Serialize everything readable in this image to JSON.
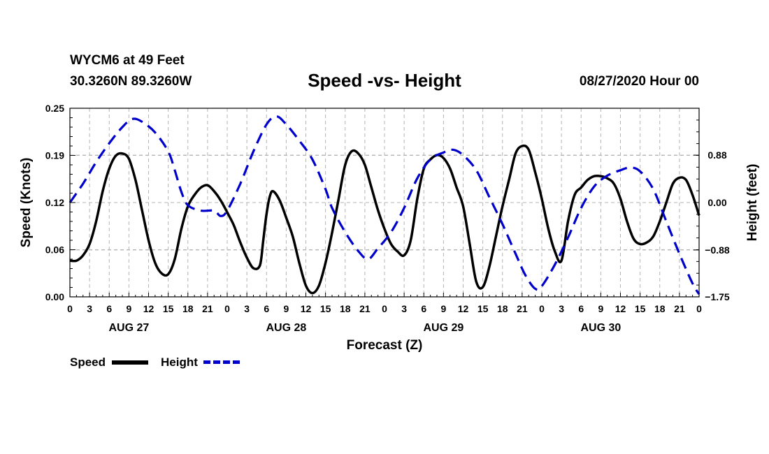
{
  "header": {
    "station": "WYCM6 at 49 Feet",
    "coords": "30.3260N 89.3260W",
    "title": "Speed -vs- Height",
    "date": "08/27/2020 Hour 00"
  },
  "legend": {
    "speed_label": "Speed",
    "height_label": "Height"
  },
  "colors": {
    "speed": "#000000",
    "height": "#0000cc",
    "grid": "#b4b4b4"
  },
  "chart_data": {
    "type": "line",
    "title": "Speed -vs- Height",
    "xlabel": "Forecast (Z)",
    "ylabel": "Speed (Knots)",
    "y2label": "Height (feet)",
    "xlim": [
      0,
      96
    ],
    "ylim": [
      0,
      0.25
    ],
    "y2lim": [
      -1.75,
      1.75
    ],
    "x_tick_labels": [
      "0",
      "3",
      "6",
      "9",
      "12",
      "15",
      "18",
      "21",
      "0",
      "3",
      "6",
      "9",
      "12",
      "15",
      "18",
      "21",
      "0",
      "3",
      "6",
      "9",
      "12",
      "15",
      "18",
      "21",
      "0",
      "3",
      "6",
      "9",
      "12",
      "15",
      "18",
      "21",
      "0"
    ],
    "day_labels": [
      {
        "x": 9,
        "label": "AUG 27"
      },
      {
        "x": 33,
        "label": "AUG 28"
      },
      {
        "x": 57,
        "label": "AUG 29"
      },
      {
        "x": 81,
        "label": "AUG 30"
      }
    ],
    "y_ticks": [
      {
        "value": 0.0,
        "label": "0.00"
      },
      {
        "value": 0.0625,
        "label": "0.06"
      },
      {
        "value": 0.125,
        "label": "0.12"
      },
      {
        "value": 0.1875,
        "label": "0.19"
      },
      {
        "value": 0.25,
        "label": "0.25"
      }
    ],
    "y2_ticks": [
      {
        "value": 0.88,
        "label": "0.88"
      },
      {
        "value": 0.0,
        "label": "0.00"
      },
      {
        "value": -0.88,
        "label": "−0.88"
      },
      {
        "value": -1.75,
        "label": "−1.75"
      }
    ],
    "series": [
      {
        "name": "Speed",
        "axis": "left",
        "style": "solid",
        "points": [
          [
            0,
            0.048
          ],
          [
            1,
            0.048
          ],
          [
            2,
            0.055
          ],
          [
            3,
            0.07
          ],
          [
            4,
            0.1
          ],
          [
            5,
            0.14
          ],
          [
            6,
            0.17
          ],
          [
            7,
            0.187
          ],
          [
            8,
            0.19
          ],
          [
            9,
            0.183
          ],
          [
            10,
            0.155
          ],
          [
            11,
            0.115
          ],
          [
            12,
            0.075
          ],
          [
            13,
            0.045
          ],
          [
            14,
            0.031
          ],
          [
            15,
            0.03
          ],
          [
            16,
            0.05
          ],
          [
            17,
            0.09
          ],
          [
            18,
            0.12
          ],
          [
            19,
            0.135
          ],
          [
            20,
            0.145
          ],
          [
            21,
            0.148
          ],
          [
            22,
            0.14
          ],
          [
            23,
            0.128
          ],
          [
            24,
            0.112
          ],
          [
            25,
            0.095
          ],
          [
            26,
            0.072
          ],
          [
            27,
            0.052
          ],
          [
            28,
            0.038
          ],
          [
            29,
            0.042
          ],
          [
            29.5,
            0.075
          ],
          [
            30,
            0.11
          ],
          [
            30.5,
            0.133
          ],
          [
            31,
            0.14
          ],
          [
            32,
            0.128
          ],
          [
            33,
            0.105
          ],
          [
            34,
            0.08
          ],
          [
            35,
            0.045
          ],
          [
            36,
            0.015
          ],
          [
            37,
            0.005
          ],
          [
            38,
            0.015
          ],
          [
            39,
            0.045
          ],
          [
            40,
            0.085
          ],
          [
            41,
            0.13
          ],
          [
            42,
            0.175
          ],
          [
            43,
            0.193
          ],
          [
            44,
            0.19
          ],
          [
            45,
            0.175
          ],
          [
            46,
            0.145
          ],
          [
            47,
            0.115
          ],
          [
            48,
            0.09
          ],
          [
            49,
            0.07
          ],
          [
            50,
            0.06
          ],
          [
            51,
            0.055
          ],
          [
            52,
            0.075
          ],
          [
            53,
            0.13
          ],
          [
            54,
            0.17
          ],
          [
            55,
            0.182
          ],
          [
            56,
            0.188
          ],
          [
            57,
            0.184
          ],
          [
            58,
            0.17
          ],
          [
            59,
            0.145
          ],
          [
            60,
            0.12
          ],
          [
            61,
            0.07
          ],
          [
            62,
            0.02
          ],
          [
            63,
            0.013
          ],
          [
            64,
            0.04
          ],
          [
            65,
            0.08
          ],
          [
            66,
            0.12
          ],
          [
            67,
            0.155
          ],
          [
            68,
            0.19
          ],
          [
            69,
            0.2
          ],
          [
            70,
            0.195
          ],
          [
            71,
            0.165
          ],
          [
            72,
            0.13
          ],
          [
            73,
            0.09
          ],
          [
            74,
            0.06
          ],
          [
            75,
            0.048
          ],
          [
            76,
            0.1
          ],
          [
            77,
            0.135
          ],
          [
            78,
            0.145
          ],
          [
            79,
            0.155
          ],
          [
            80,
            0.16
          ],
          [
            81,
            0.16
          ],
          [
            82,
            0.157
          ],
          [
            83,
            0.15
          ],
          [
            84,
            0.13
          ],
          [
            85,
            0.1
          ],
          [
            86,
            0.077
          ],
          [
            87,
            0.07
          ],
          [
            88,
            0.072
          ],
          [
            89,
            0.08
          ],
          [
            90,
            0.1
          ],
          [
            91,
            0.125
          ],
          [
            92,
            0.15
          ],
          [
            93,
            0.158
          ],
          [
            94,
            0.155
          ],
          [
            95,
            0.135
          ],
          [
            96,
            0.108
          ]
        ]
      },
      {
        "name": "Height",
        "axis": "right",
        "style": "dashed",
        "points": [
          [
            0,
            0.0
          ],
          [
            2,
            0.35
          ],
          [
            4,
            0.75
          ],
          [
            6,
            1.1
          ],
          [
            8,
            1.4
          ],
          [
            9.5,
            1.55
          ],
          [
            11,
            1.5
          ],
          [
            13,
            1.3
          ],
          [
            15,
            0.95
          ],
          [
            16,
            0.6
          ],
          [
            17,
            0.2
          ],
          [
            18,
            -0.05
          ],
          [
            20,
            -0.15
          ],
          [
            22,
            -0.15
          ],
          [
            23,
            -0.25
          ],
          [
            24,
            -0.15
          ],
          [
            26,
            0.35
          ],
          [
            28,
            0.95
          ],
          [
            30,
            1.45
          ],
          [
            31.5,
            1.6
          ],
          [
            33,
            1.45
          ],
          [
            35,
            1.15
          ],
          [
            37,
            0.8
          ],
          [
            39,
            0.25
          ],
          [
            40,
            -0.1
          ],
          [
            42,
            -0.55
          ],
          [
            44,
            -0.9
          ],
          [
            45.5,
            -1.05
          ],
          [
            47,
            -0.85
          ],
          [
            49,
            -0.55
          ],
          [
            51,
            -0.1
          ],
          [
            53,
            0.45
          ],
          [
            55,
            0.8
          ],
          [
            57,
            0.93
          ],
          [
            58.5,
            0.98
          ],
          [
            60,
            0.88
          ],
          [
            62,
            0.6
          ],
          [
            64,
            0.1
          ],
          [
            66,
            -0.4
          ],
          [
            68,
            -0.95
          ],
          [
            69.5,
            -1.35
          ],
          [
            71,
            -1.6
          ],
          [
            72,
            -1.55
          ],
          [
            74,
            -1.15
          ],
          [
            76,
            -0.65
          ],
          [
            78,
            -0.1
          ],
          [
            80,
            0.3
          ],
          [
            82,
            0.5
          ],
          [
            84,
            0.6
          ],
          [
            85.5,
            0.65
          ],
          [
            87,
            0.58
          ],
          [
            89,
            0.25
          ],
          [
            91,
            -0.35
          ],
          [
            93,
            -0.95
          ],
          [
            95,
            -1.5
          ],
          [
            96,
            -1.7
          ]
        ]
      }
    ]
  }
}
